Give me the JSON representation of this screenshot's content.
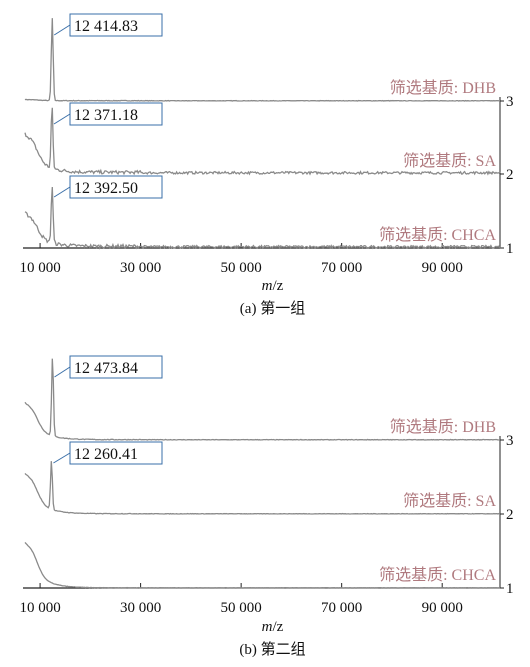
{
  "chart_data": [
    {
      "type": "line",
      "caption": "(a) 第一组",
      "xlabel_italic": "m",
      "xlabel_rest": "/z",
      "xlim": [
        7000,
        101500
      ],
      "x_ticks": [
        10000,
        30000,
        50000,
        70000,
        90000
      ],
      "x_tick_labels": [
        "10 000",
        "30 000",
        "50 000",
        "70 000",
        "90 000"
      ],
      "y_ticks": [
        "3",
        "2",
        "1"
      ],
      "colors": {
        "trace": "#8a8a8a",
        "label": "#b07a7f",
        "box": "#3a6fa8"
      },
      "series": [
        {
          "name": "筛选基质: DHB",
          "level": 3,
          "peak_x": 12414.83,
          "peak_label": "12 414.83",
          "pre_height": 0.02,
          "peak_height": 0.95,
          "noise": 0.005
        },
        {
          "name": "筛选基质: SA",
          "level": 2,
          "peak_x": 12371.18,
          "peak_label": "12 371.18",
          "pre_height": 0.82,
          "peak_height": 0.9,
          "noise": 0.035
        },
        {
          "name": "筛选基质: CHCA",
          "level": 1,
          "peak_x": 12392.5,
          "peak_label": "12 392.50",
          "pre_height": 0.7,
          "peak_height": 0.82,
          "noise": 0.035
        }
      ]
    },
    {
      "type": "line",
      "caption": "(b) 第二组",
      "xlabel_italic": "m",
      "xlabel_rest": "/z",
      "xlim": [
        7000,
        101500
      ],
      "x_ticks": [
        10000,
        30000,
        50000,
        70000,
        90000
      ],
      "x_tick_labels": [
        "10 000",
        "30 000",
        "50 000",
        "70 000",
        "90 000"
      ],
      "y_ticks": [
        "3",
        "2",
        "1"
      ],
      "colors": {
        "trace": "#8a8a8a",
        "label": "#b07a7f",
        "box": "#3a6fa8"
      },
      "series": [
        {
          "name": "筛选基质: DHB",
          "level": 3,
          "peak_x": 12473.84,
          "peak_label": "12 473.84",
          "pre_height": 0.65,
          "peak_height": 0.95,
          "noise": 0.006
        },
        {
          "name": "筛选基质: SA",
          "level": 2,
          "peak_x": 12260.41,
          "peak_label": "12 260.41",
          "pre_height": 0.85,
          "peak_height": 0.7,
          "noise": 0.006
        },
        {
          "name": "筛选基质: CHCA",
          "level": 1,
          "peak_x": null,
          "peak_label": "",
          "pre_height": 0.95,
          "peak_height": 0,
          "noise": 0.004
        }
      ]
    }
  ]
}
